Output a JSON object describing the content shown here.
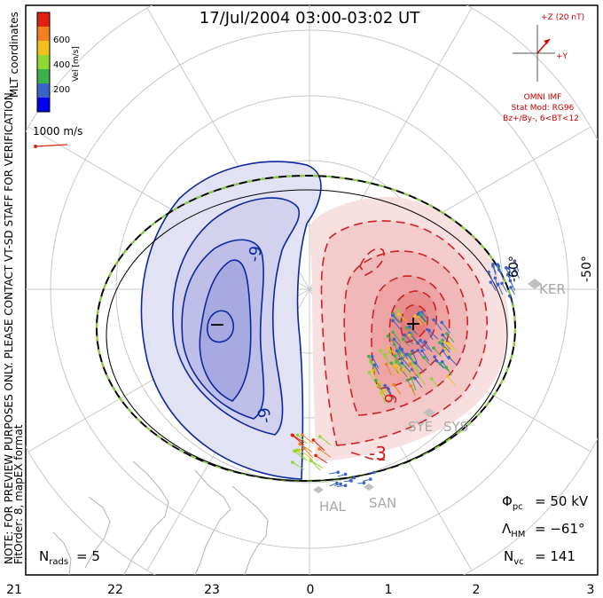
{
  "title": "17/Jul/2004 03:00-03:02 UT",
  "coordinates_label": "MLT coordinates",
  "note_line1": "NOTE: FOR PREVIEW PURPOSES ONLY. PLEASE CONTACT VT-SD STAFF FOR VERIFICATION.",
  "note_line2": "FitOrder: 8, mapEX format",
  "velocity_scale": {
    "label": "Vel [m/s]",
    "ticks": [
      "600",
      "400",
      "200"
    ],
    "colors": [
      "#0000ee",
      "#3c64c8",
      "#3cb04c",
      "#90d830",
      "#f0c020",
      "#f08020",
      "#e02010"
    ]
  },
  "reference_vector_label": "1000 m/s",
  "imf": {
    "z_label": "+Z (20 nT)",
    "y_label": "+Y",
    "source": "OMNI IMF",
    "model": "Stat Mod: RG96",
    "condition": "Bz+/By-, 6<BT<12"
  },
  "latitude_labels": [
    "-60°",
    "-50°"
  ],
  "stations": [
    "KER",
    "SYE",
    "SYS",
    "HAL",
    "SAN"
  ],
  "contour_labels": [
    "-9",
    "-9",
    "9",
    "-3"
  ],
  "potential_markers": {
    "min": "−",
    "max": "+"
  },
  "stats": {
    "phi_label": "Φ",
    "phi_sub": "pc",
    "phi_value": "= 50 kV",
    "lambda_label": "Λ",
    "lambda_sub": "HM",
    "lambda_value": "= −61°",
    "nvc_label": "N",
    "nvc_sub": "vc",
    "nvc_value": "= 141",
    "nrads_label": "N",
    "nrads_sub": "rads",
    "nrads_value": "= 5"
  },
  "mlt_ticks": [
    "21",
    "22",
    "23",
    "0",
    "1",
    "2",
    "3"
  ],
  "colors": {
    "negative_cell": "#0a28a0",
    "positive_cell": "#d02020",
    "hmb": "#000000",
    "hmb_dash": "#8ad23c"
  }
}
